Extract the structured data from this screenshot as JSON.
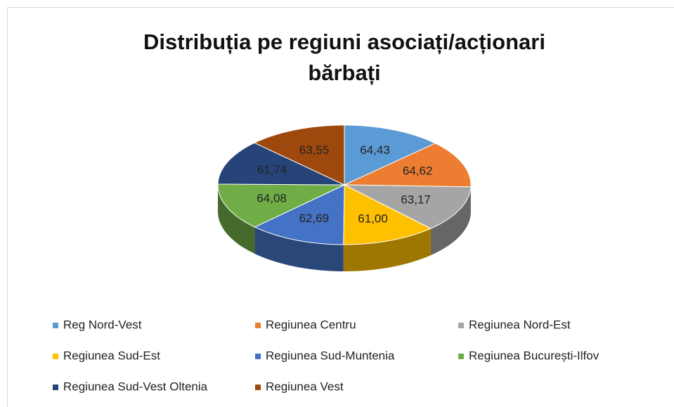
{
  "chart_data": {
    "type": "pie3d",
    "title": "Distribuția pe regiuni asociați/acționari bărbați",
    "categories": [
      "Reg Nord-Vest",
      "Regiunea Centru",
      "Regiunea Nord-Est",
      "Regiunea Sud-Est",
      "Regiunea Sud-Muntenia",
      "Regiunea București-Ilfov",
      "Regiunea Sud-Vest Oltenia",
      "Regiunea Vest"
    ],
    "values": [
      64.43,
      64.62,
      63.17,
      61.0,
      62.69,
      64.08,
      61.74,
      63.55
    ],
    "value_labels": [
      "64,43",
      "64,62",
      "63,17",
      "61,00",
      "62,69",
      "64,08",
      "61,74",
      "63,55"
    ],
    "colors": [
      "#5b9bd5",
      "#ed7d31",
      "#a5a5a5",
      "#ffc000",
      "#4472c4",
      "#70ad47",
      "#264478",
      "#9e480e"
    ],
    "legend": "bottom"
  }
}
